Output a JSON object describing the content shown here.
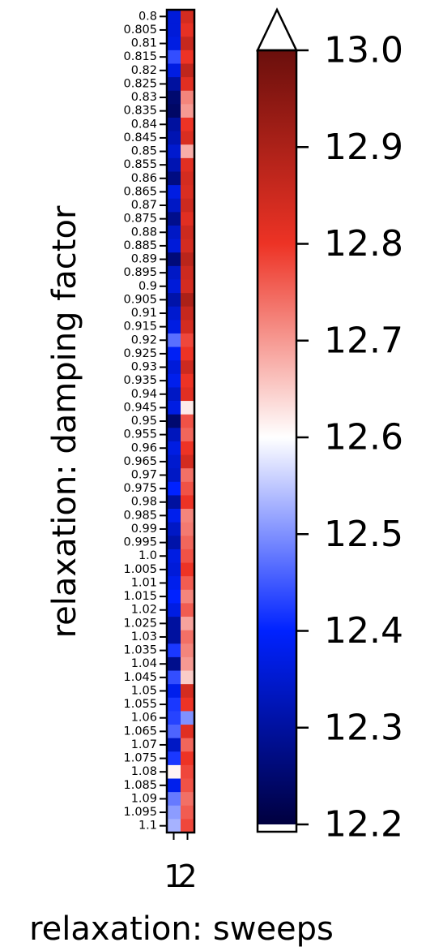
{
  "chart_data": {
    "type": "heatmap",
    "title": "",
    "xlabel": "relaxation: sweeps",
    "ylabel": "relaxation: damping factor",
    "x_categories": [
      "1",
      "2"
    ],
    "y_categories": [
      "0.8",
      "0.805",
      "0.81",
      "0.815",
      "0.82",
      "0.825",
      "0.83",
      "0.835",
      "0.84",
      "0.845",
      "0.85",
      "0.855",
      "0.86",
      "0.865",
      "0.87",
      "0.875",
      "0.88",
      "0.885",
      "0.89",
      "0.895",
      "0.9",
      "0.905",
      "0.91",
      "0.915",
      "0.92",
      "0.925",
      "0.93",
      "0.935",
      "0.94",
      "0.945",
      "0.95",
      "0.955",
      "0.96",
      "0.965",
      "0.97",
      "0.975",
      "0.98",
      "0.985",
      "0.99",
      "0.995",
      "1.0",
      "1.005",
      "1.01",
      "1.015",
      "1.02",
      "1.025",
      "1.03",
      "1.035",
      "1.04",
      "1.045",
      "1.05",
      "1.055",
      "1.06",
      "1.065",
      "1.07",
      "1.075",
      "1.08",
      "1.085",
      "1.09",
      "1.095",
      "1.1"
    ],
    "series": [
      {
        "name": "1",
        "values": [
          12.36,
          12.36,
          12.37,
          12.44,
          12.37,
          12.3,
          12.25,
          12.24,
          12.3,
          12.32,
          12.35,
          12.32,
          12.27,
          12.37,
          12.34,
          12.28,
          12.34,
          12.36,
          12.26,
          12.34,
          12.36,
          12.31,
          12.35,
          12.37,
          12.47,
          12.39,
          12.36,
          12.38,
          12.34,
          12.37,
          12.25,
          12.33,
          12.37,
          12.35,
          12.34,
          12.4,
          12.3,
          12.38,
          12.34,
          12.31,
          12.37,
          12.36,
          12.38,
          12.4,
          12.37,
          12.3,
          12.3,
          12.42,
          12.28,
          12.44,
          12.38,
          12.42,
          12.43,
          12.46,
          12.34,
          12.42,
          12.61,
          12.38,
          12.48,
          12.51,
          12.53
        ]
      },
      {
        "name": "2",
        "values": [
          12.84,
          12.81,
          12.86,
          12.8,
          12.87,
          12.82,
          12.72,
          12.7,
          12.8,
          12.83,
          12.68,
          12.82,
          12.84,
          12.83,
          12.85,
          12.82,
          12.85,
          12.84,
          12.88,
          12.85,
          12.84,
          12.9,
          12.86,
          12.84,
          12.78,
          12.8,
          12.85,
          12.8,
          12.82,
          12.62,
          12.77,
          12.75,
          12.8,
          12.84,
          12.74,
          12.77,
          12.8,
          12.72,
          12.73,
          12.75,
          12.77,
          12.8,
          12.76,
          12.72,
          12.76,
          12.69,
          12.74,
          12.72,
          12.7,
          12.65,
          12.84,
          12.8,
          12.5,
          12.82,
          12.75,
          12.8,
          12.78,
          12.77,
          12.74,
          12.76,
          12.78
        ]
      }
    ],
    "colorbar": {
      "min": 12.2,
      "max": 13.0,
      "ticks": [
        "12.2",
        "12.3",
        "12.4",
        "12.5",
        "12.6",
        "12.7",
        "12.8",
        "12.9",
        "13.0"
      ],
      "extend": "both",
      "colormap": [
        "#00003f",
        "#0022ff",
        "#ffffff",
        "#ed3325",
        "#6a0f0c"
      ]
    }
  }
}
